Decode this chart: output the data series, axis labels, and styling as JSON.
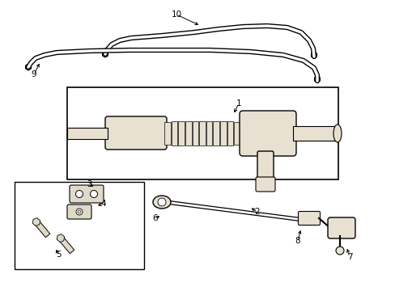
{
  "bg_color": "#ffffff",
  "line_color": "#000000",
  "fill_color": "#e8e0d0",
  "fill_color2": "#e0d8c8",
  "labels": [
    [
      "10",
      218,
      18,
      248,
      32
    ],
    [
      "9",
      42,
      92,
      50,
      76
    ],
    [
      "1",
      295,
      128,
      288,
      142
    ],
    [
      "2",
      318,
      262,
      308,
      256
    ],
    [
      "3",
      110,
      228,
      118,
      232
    ],
    [
      "4",
      128,
      252,
      118,
      255
    ],
    [
      "5",
      72,
      315,
      68,
      306
    ],
    [
      "6",
      192,
      270,
      200,
      266
    ],
    [
      "7",
      432,
      318,
      428,
      305
    ],
    [
      "8",
      368,
      298,
      372,
      282
    ]
  ]
}
